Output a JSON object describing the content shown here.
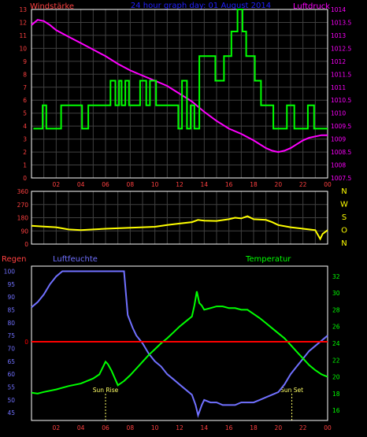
{
  "header": {
    "left_title": "Windstärke",
    "center_title": "24 hour graph day: 01 August 2014",
    "right_title": "Luftdruck"
  },
  "colors": {
    "background": "#000000",
    "wind_speed": "#00ff00",
    "pressure": "#ff00ff",
    "direction": "#ffff00",
    "humidity": "#7070ff",
    "temperature": "#00ff00",
    "rain": "#ff0000",
    "frame": "#ffffff",
    "grid": "#404040",
    "axis_text_left": "#ff4040",
    "axis_text_right": "#ff00ff",
    "title_blue": "#2020ff",
    "direction_letters": "#ffff00"
  },
  "chart_data": [
    {
      "type": "line",
      "panel": "wind-pressure",
      "title": "24 hour graph day: 01 August 2014",
      "x_ticks": [
        "02",
        "04",
        "06",
        "08",
        "10",
        "12",
        "14",
        "16",
        "18",
        "20",
        "22",
        "00"
      ],
      "x_range": [
        0,
        24
      ],
      "left_axis": {
        "label": "Windstärke",
        "ticks": [
          0,
          1,
          2,
          3,
          4,
          5,
          6,
          7,
          8,
          9,
          10,
          11,
          12,
          13
        ],
        "range": [
          0,
          13
        ]
      },
      "right_axis": {
        "label": "Luftdruck",
        "ticks": [
          "1007.5",
          "1008",
          "1008.5",
          "1009",
          "1009.5",
          "1010",
          "1010.5",
          "1011",
          "1011.5",
          "1012",
          "1012.5",
          "1013",
          "1013.5",
          "1014"
        ],
        "range": [
          1007.5,
          1014
        ]
      },
      "grid": true,
      "series": [
        {
          "name": "Windstärke",
          "axis": "left",
          "step": true,
          "x": [
            0.15,
            0.9,
            1.2,
            2.0,
            2.4,
            3.0,
            3.7,
            4.1,
            4.6,
            5.2,
            5.8,
            6.4,
            6.8,
            7.1,
            7.3,
            7.6,
            7.9,
            8.1,
            8.8,
            9.3,
            9.6,
            10.1,
            10.6,
            11.2,
            11.6,
            11.9,
            12.2,
            12.6,
            12.9,
            13.2,
            13.6,
            14.1,
            14.9,
            15.6,
            16.2,
            16.7,
            17.1,
            17.4,
            17.7,
            18.1,
            18.6,
            19.1,
            19.6,
            20.2,
            20.7,
            21.3,
            21.8,
            22.4,
            22.9,
            23.4,
            23.8,
            24.0
          ],
          "y": [
            3.8,
            5.6,
            3.8,
            3.8,
            5.6,
            5.6,
            5.6,
            3.8,
            5.6,
            5.6,
            5.6,
            7.5,
            5.6,
            7.5,
            5.6,
            7.5,
            5.6,
            5.6,
            7.5,
            5.6,
            7.5,
            5.6,
            5.6,
            5.6,
            5.6,
            3.8,
            7.5,
            3.8,
            5.6,
            3.8,
            9.4,
            9.4,
            7.5,
            9.4,
            11.3,
            13,
            11.3,
            9.4,
            9.4,
            7.5,
            5.6,
            5.6,
            3.8,
            3.8,
            5.6,
            3.8,
            3.8,
            5.6,
            3.8,
            3.8,
            3.8,
            3.8
          ]
        },
        {
          "name": "Luftdruck",
          "axis": "right",
          "x": [
            0,
            0.5,
            1,
            1.5,
            2,
            3,
            4,
            5,
            6,
            7,
            8,
            9,
            10,
            11,
            12,
            13,
            14,
            15,
            16,
            17,
            18,
            19,
            19.5,
            20,
            20.5,
            21,
            21.5,
            22,
            22.5,
            23,
            23.5,
            24
          ],
          "y": [
            1013.4,
            1013.6,
            1013.55,
            1013.4,
            1013.2,
            1012.95,
            1012.7,
            1012.45,
            1012.2,
            1011.9,
            1011.65,
            1011.45,
            1011.25,
            1011.05,
            1010.75,
            1010.45,
            1010.05,
            1009.7,
            1009.4,
            1009.2,
            1008.95,
            1008.65,
            1008.55,
            1008.5,
            1008.55,
            1008.65,
            1008.8,
            1008.95,
            1009.05,
            1009.1,
            1009.15,
            1009.15
          ]
        }
      ]
    },
    {
      "type": "line",
      "panel": "wind-direction",
      "title": "",
      "x_range": [
        0,
        24
      ],
      "left_axis": {
        "ticks": [
          0,
          90,
          180,
          270,
          360
        ],
        "range": [
          0,
          360
        ]
      },
      "right_labels": [
        "N",
        "W",
        "S",
        "O",
        "N"
      ],
      "grid": true,
      "series": [
        {
          "name": "",
          "x": [
            0,
            1,
            2,
            3,
            4,
            5,
            6,
            7,
            8,
            9,
            10,
            11,
            12,
            13,
            13.5,
            14,
            15,
            16,
            16.5,
            17,
            17.5,
            18,
            19,
            19.5,
            20,
            21,
            22,
            22.5,
            23,
            23.4,
            23.6,
            24
          ],
          "y": [
            125,
            120,
            115,
            100,
            95,
            100,
            105,
            108,
            112,
            115,
            118,
            130,
            140,
            150,
            165,
            160,
            158,
            170,
            180,
            175,
            190,
            170,
            165,
            150,
            130,
            115,
            105,
            100,
            95,
            35,
            70,
            95
          ]
        }
      ]
    },
    {
      "type": "line",
      "panel": "rain-humidity-temperature",
      "x_ticks": [
        "02",
        "04",
        "06",
        "08",
        "10",
        "12",
        "14",
        "16",
        "18",
        "20",
        "22",
        "00"
      ],
      "x_range": [
        0,
        24
      ],
      "labels": {
        "rain": "Regen",
        "humidity": "Luftfeuchte",
        "temperature": "Temperatur"
      },
      "left_axis": {
        "label": "Luftfeuchte",
        "ticks": [
          45,
          50,
          55,
          60,
          65,
          70,
          75,
          80,
          85,
          90,
          95,
          100
        ],
        "range": [
          42,
          102
        ]
      },
      "right_axis": {
        "label": "Temperatur",
        "ticks": [
          16,
          18,
          20,
          22,
          24,
          26,
          28,
          30,
          32
        ],
        "range": [
          14.8,
          33.2
        ]
      },
      "rain_axis": {
        "ticks": [
          0
        ],
        "value": 0
      },
      "annotations": [
        {
          "text": "Sun Rise",
          "x": 6.0
        },
        {
          "text": "Sun Set",
          "x": 21.1
        }
      ],
      "series": [
        {
          "name": "Luftfeuchte",
          "axis": "left",
          "x": [
            0,
            0.5,
            1,
            1.5,
            2,
            2.5,
            3,
            4,
            5,
            5.5,
            5.8,
            6.0,
            7.0,
            7.5,
            7.8,
            8.2,
            8.5,
            9,
            9.5,
            10,
            10.5,
            11,
            11.5,
            12,
            12.5,
            13,
            13.3,
            13.5,
            13.8,
            14,
            14.5,
            15,
            15.5,
            16,
            16.5,
            17,
            17.5,
            18,
            18.5,
            19,
            19.5,
            20,
            20.5,
            21,
            21.5,
            22,
            22.5,
            23,
            23.5,
            24
          ],
          "y": [
            86,
            88,
            91,
            95,
            98,
            100,
            100,
            100,
            100,
            100,
            100,
            100,
            100,
            100,
            83,
            78,
            75,
            72,
            68,
            65,
            63,
            60,
            58,
            56,
            54,
            52,
            48,
            44,
            48,
            50,
            49,
            49,
            48,
            48,
            48,
            49,
            49,
            49,
            50,
            51,
            52,
            53,
            56,
            60,
            63,
            66,
            69,
            71,
            73,
            75
          ]
        },
        {
          "name": "Temperatur",
          "axis": "right",
          "x": [
            0,
            0.5,
            1,
            2,
            3,
            4,
            5,
            5.5,
            5.8,
            6.0,
            6.2,
            6.5,
            7,
            7.5,
            8,
            8.5,
            9,
            9.5,
            10,
            10.5,
            11,
            11.5,
            12,
            12.5,
            13,
            13.2,
            13.4,
            13.6,
            13.8,
            14,
            14.5,
            15,
            15.5,
            16,
            16.5,
            17,
            17.5,
            18,
            18.5,
            19,
            19.5,
            20,
            20.5,
            21,
            21.5,
            22,
            22.5,
            23,
            23.5,
            24
          ],
          "y": [
            18.1,
            18.0,
            18.2,
            18.5,
            18.9,
            19.2,
            19.8,
            20.3,
            21.2,
            21.8,
            21.5,
            20.7,
            19.0,
            19.5,
            20.2,
            21.0,
            21.8,
            22.6,
            23.3,
            24.0,
            24.6,
            25.3,
            26.0,
            26.6,
            27.2,
            28.5,
            30.2,
            28.8,
            28.5,
            28.0,
            28.2,
            28.4,
            28.4,
            28.2,
            28.2,
            28.0,
            28.0,
            27.5,
            27.0,
            26.4,
            25.8,
            25.2,
            24.6,
            23.8,
            23.0,
            22.2,
            21.4,
            20.8,
            20.3,
            20.0
          ]
        },
        {
          "name": "Regen",
          "axis": "rain",
          "x": [
            0,
            24
          ],
          "y": [
            0,
            0
          ]
        }
      ]
    }
  ]
}
